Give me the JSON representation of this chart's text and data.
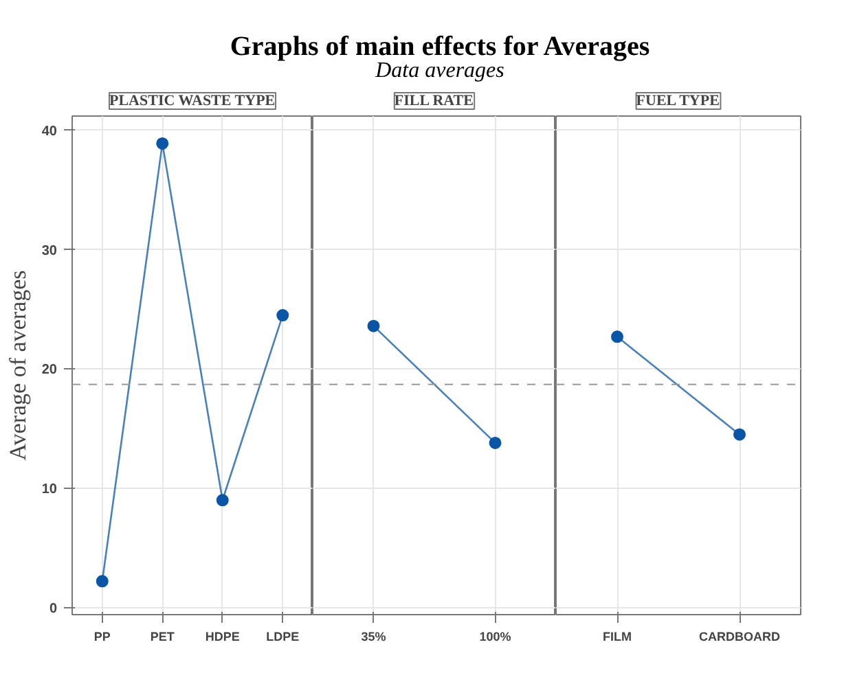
{
  "chart_data": [
    {
      "type": "line",
      "title": "PLASTIC WASTE TYPE",
      "annotations": [
        "Graphs of main effects for Averages",
        "Data averages"
      ],
      "ylabel": "Average of averages",
      "categories": [
        "PP",
        "PET",
        "HDPE",
        "LDPE"
      ],
      "series": [
        {
          "color": "#0b55a6",
          "values": [
            2.2,
            38.9,
            9.0,
            24.5
          ]
        }
      ],
      "ylim": [
        -0.6,
        41.2
      ],
      "yticks": [
        0,
        10,
        20,
        30,
        40
      ],
      "grid": true,
      "marker": "circle",
      "line_style": "solid",
      "ref_lines": [
        {
          "axis": "y",
          "value": 18.7,
          "color": "#999999",
          "line_style": "dashed"
        }
      ]
    },
    {
      "type": "line",
      "title": "FILL RATE",
      "categories": [
        "35%",
        "100%"
      ],
      "series": [
        {
          "color": "#0b55a6",
          "values": [
            23.6,
            13.8
          ]
        }
      ],
      "ylim": [
        -0.6,
        41.2
      ],
      "yticks": [
        0,
        10,
        20,
        30,
        40
      ],
      "grid": true,
      "marker": "circle",
      "line_style": "solid",
      "tick_labels": "x",
      "ref_lines": [
        {
          "axis": "y",
          "value": 18.7,
          "color": "#999999",
          "line_style": "dashed"
        }
      ]
    },
    {
      "type": "line",
      "title": "FUEL TYPE",
      "categories": [
        "FILM",
        "CARDBOARD"
      ],
      "series": [
        {
          "color": "#0b55a6",
          "values": [
            22.7,
            14.5
          ]
        }
      ],
      "ylim": [
        -0.6,
        41.2
      ],
      "yticks": [
        0,
        10,
        20,
        30,
        40
      ],
      "grid": true,
      "marker": "circle",
      "line_style": "solid",
      "tick_labels": "x",
      "ref_lines": [
        {
          "axis": "y",
          "value": 18.7,
          "color": "#999999",
          "line_style": "dashed"
        }
      ]
    }
  ]
}
